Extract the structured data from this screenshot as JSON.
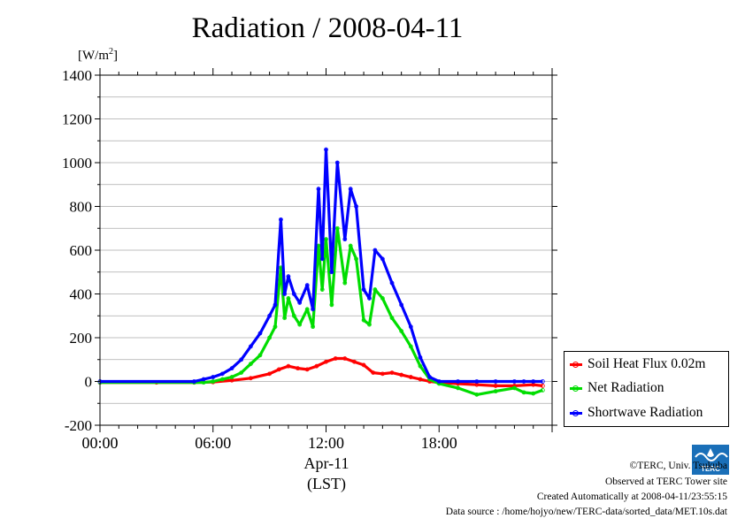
{
  "title": "Radiation / 2008-04-11",
  "unit_label": "[W/m",
  "unit_sup": "2",
  "unit_close": "]",
  "x_date_label": "Apr-11",
  "x_tz_label": "(LST)",
  "footer": {
    "copyright": "©TERC, Univ. Tsukuba",
    "site": "Observed at TERC Tower site",
    "created": "Created Automatically at 2008-04-11/23:55:15",
    "source": "Data source : /home/hojyo/new/TERC-data/sorted_data/MET.10s.dat"
  },
  "logo_text": "TERC",
  "colors": {
    "soil": "#ff0000",
    "net": "#00dd00",
    "shortwave": "#0000ff",
    "grid": "#aaaaaa"
  },
  "chart_data": {
    "type": "line",
    "title": "Radiation / 2008-04-11",
    "ylabel": "[W/m2]",
    "xlabel": "Apr-11 (LST)",
    "xlim": [
      0,
      24
    ],
    "ylim": [
      -200,
      1400
    ],
    "xticks": [
      0,
      6,
      12,
      18
    ],
    "xtick_labels": [
      "00:00",
      "06:00",
      "12:00",
      "18:00"
    ],
    "yticks": [
      -200,
      0,
      200,
      400,
      600,
      800,
      1000,
      1200,
      1400
    ],
    "ytick_labels": [
      "-200",
      "0",
      "200",
      "400",
      "600",
      "800",
      "1000",
      "1200",
      "1400"
    ],
    "grid": true,
    "legend_position": "bottom-right (outside plot)",
    "series": [
      {
        "name": "Soil Heat Flux 0.02m",
        "color": "#ff0000",
        "x": [
          0,
          3,
          5,
          6,
          7,
          8,
          9,
          9.5,
          10,
          10.5,
          11,
          11.5,
          12,
          12.5,
          13,
          13.5,
          14,
          14.5,
          15,
          15.5,
          16,
          16.5,
          17,
          17.5,
          18,
          19,
          20,
          21,
          22,
          23,
          23.5
        ],
        "values": [
          -5,
          -5,
          -5,
          -3,
          5,
          15,
          35,
          55,
          70,
          60,
          55,
          70,
          90,
          105,
          105,
          90,
          75,
          40,
          35,
          40,
          30,
          20,
          10,
          0,
          -5,
          -10,
          -15,
          -20,
          -20,
          -15,
          -20
        ]
      },
      {
        "name": "Net Radiation",
        "color": "#00dd00",
        "x": [
          0,
          5,
          5.5,
          6,
          6.5,
          7,
          7.5,
          8,
          8.5,
          9,
          9.3,
          9.6,
          9.8,
          10,
          10.3,
          10.6,
          11,
          11.3,
          11.6,
          11.8,
          12,
          12.3,
          12.6,
          13,
          13.3,
          13.6,
          14,
          14.3,
          14.6,
          15,
          15.5,
          16,
          16.5,
          17,
          17.5,
          18,
          19,
          20,
          21,
          22,
          22.5,
          23,
          23.5
        ],
        "values": [
          -5,
          -5,
          -5,
          0,
          10,
          20,
          40,
          80,
          120,
          200,
          250,
          520,
          290,
          380,
          300,
          260,
          330,
          250,
          620,
          420,
          650,
          350,
          700,
          450,
          620,
          560,
          280,
          260,
          420,
          380,
          290,
          230,
          160,
          70,
          10,
          -10,
          -30,
          -60,
          -45,
          -30,
          -50,
          -55,
          -40
        ]
      },
      {
        "name": "Shortwave Radiation",
        "color": "#0000ff",
        "x": [
          0,
          5,
          5.5,
          6,
          6.5,
          7,
          7.5,
          8,
          8.5,
          9,
          9.3,
          9.6,
          9.8,
          10,
          10.3,
          10.6,
          11,
          11.3,
          11.6,
          11.8,
          12,
          12.3,
          12.6,
          13,
          13.3,
          13.6,
          14,
          14.3,
          14.6,
          15,
          15.5,
          16,
          16.5,
          17,
          17.5,
          18,
          19,
          20,
          21,
          22,
          22.5,
          23,
          23.5
        ],
        "values": [
          0,
          0,
          10,
          20,
          35,
          60,
          100,
          160,
          220,
          300,
          350,
          740,
          400,
          480,
          400,
          360,
          440,
          330,
          880,
          560,
          1060,
          500,
          1000,
          650,
          880,
          800,
          420,
          380,
          600,
          560,
          450,
          350,
          250,
          110,
          20,
          0,
          0,
          0,
          0,
          0,
          0,
          0,
          0
        ]
      }
    ]
  }
}
